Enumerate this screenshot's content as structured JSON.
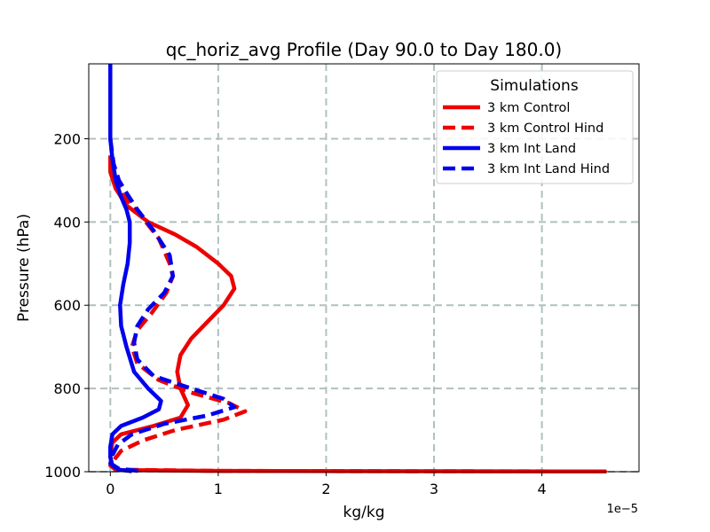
{
  "chart_data": {
    "type": "line",
    "title": "qc_horiz_avg Profile (Day 90.0 to Day 180.0)",
    "xlabel": "kg/kg",
    "ylabel": "Pressure (hPa)",
    "x_offset_text": "1e−5",
    "x_scale": 1e-05,
    "xlim": [
      -0.2,
      4.9
    ],
    "ylim": [
      1000,
      20
    ],
    "y_inverted": true,
    "grid": true,
    "x_ticks": [
      0,
      1,
      2,
      3,
      4
    ],
    "x_tick_labels": [
      "0",
      "1",
      "2",
      "3",
      "4"
    ],
    "y_ticks": [
      200,
      400,
      600,
      800,
      1000
    ],
    "y_tick_labels": [
      "200",
      "400",
      "600",
      "800",
      "1000"
    ],
    "legend": {
      "title": "Simulations",
      "placement": "upper right"
    },
    "series": [
      {
        "name": "3 km Control",
        "color": "#ee0000",
        "style": "solid",
        "points": [
          [
            0.0,
            240
          ],
          [
            0.0,
            280
          ],
          [
            0.05,
            320
          ],
          [
            0.15,
            360
          ],
          [
            0.35,
            400
          ],
          [
            0.6,
            430
          ],
          [
            0.8,
            460
          ],
          [
            1.0,
            500
          ],
          [
            1.12,
            530
          ],
          [
            1.15,
            560
          ],
          [
            1.05,
            600
          ],
          [
            0.9,
            640
          ],
          [
            0.75,
            680
          ],
          [
            0.65,
            720
          ],
          [
            0.62,
            760
          ],
          [
            0.65,
            800
          ],
          [
            0.72,
            840
          ],
          [
            0.65,
            870
          ],
          [
            0.4,
            890
          ],
          [
            0.1,
            910
          ],
          [
            0.02,
            930
          ],
          [
            0.0,
            960
          ],
          [
            0.01,
            985
          ],
          [
            0.05,
            996
          ],
          [
            1.0,
            998
          ],
          [
            4.6,
            999.5
          ]
        ]
      },
      {
        "name": "3 km Control Hind",
        "color": "#ee0000",
        "style": "dashed",
        "points": [
          [
            0.05,
            290
          ],
          [
            0.1,
            330
          ],
          [
            0.2,
            360
          ],
          [
            0.3,
            390
          ],
          [
            0.45,
            440
          ],
          [
            0.55,
            500
          ],
          [
            0.58,
            530
          ],
          [
            0.52,
            570
          ],
          [
            0.38,
            620
          ],
          [
            0.25,
            660
          ],
          [
            0.2,
            700
          ],
          [
            0.25,
            740
          ],
          [
            0.45,
            780
          ],
          [
            0.75,
            810
          ],
          [
            1.1,
            835
          ],
          [
            1.25,
            855
          ],
          [
            1.05,
            875
          ],
          [
            0.6,
            900
          ],
          [
            0.3,
            925
          ],
          [
            0.1,
            950
          ],
          [
            0.04,
            970
          ],
          [
            0.0,
            985
          ],
          [
            0.05,
            995
          ],
          [
            1.0,
            998
          ],
          [
            4.6,
            999.5
          ]
        ]
      },
      {
        "name": "3 km Int Land",
        "color": "#0000ee",
        "style": "solid",
        "points": [
          [
            0.0,
            20
          ],
          [
            0.0,
            100
          ],
          [
            0.0,
            200
          ],
          [
            0.02,
            250
          ],
          [
            0.05,
            300
          ],
          [
            0.1,
            340
          ],
          [
            0.15,
            370
          ],
          [
            0.18,
            400
          ],
          [
            0.18,
            450
          ],
          [
            0.16,
            500
          ],
          [
            0.12,
            550
          ],
          [
            0.09,
            600
          ],
          [
            0.1,
            650
          ],
          [
            0.15,
            700
          ],
          [
            0.22,
            760
          ],
          [
            0.35,
            800
          ],
          [
            0.47,
            830
          ],
          [
            0.45,
            850
          ],
          [
            0.3,
            870
          ],
          [
            0.1,
            890
          ],
          [
            0.02,
            910
          ],
          [
            0.0,
            940
          ],
          [
            0.0,
            965
          ],
          [
            0.02,
            985
          ],
          [
            0.08,
            995
          ],
          [
            0.2,
            999
          ]
        ]
      },
      {
        "name": "3 km Int Land Hind",
        "color": "#0000ee",
        "style": "dashed",
        "points": [
          [
            0.0,
            200
          ],
          [
            0.03,
            260
          ],
          [
            0.08,
            300
          ],
          [
            0.15,
            330
          ],
          [
            0.25,
            370
          ],
          [
            0.4,
            420
          ],
          [
            0.55,
            480
          ],
          [
            0.58,
            530
          ],
          [
            0.5,
            570
          ],
          [
            0.35,
            610
          ],
          [
            0.25,
            650
          ],
          [
            0.22,
            690
          ],
          [
            0.25,
            730
          ],
          [
            0.4,
            770
          ],
          [
            0.75,
            800
          ],
          [
            1.05,
            825
          ],
          [
            1.15,
            845
          ],
          [
            0.9,
            865
          ],
          [
            0.5,
            885
          ],
          [
            0.2,
            910
          ],
          [
            0.07,
            935
          ],
          [
            0.02,
            960
          ],
          [
            0.0,
            980
          ],
          [
            0.08,
            993
          ],
          [
            0.3,
            999
          ]
        ]
      }
    ]
  }
}
